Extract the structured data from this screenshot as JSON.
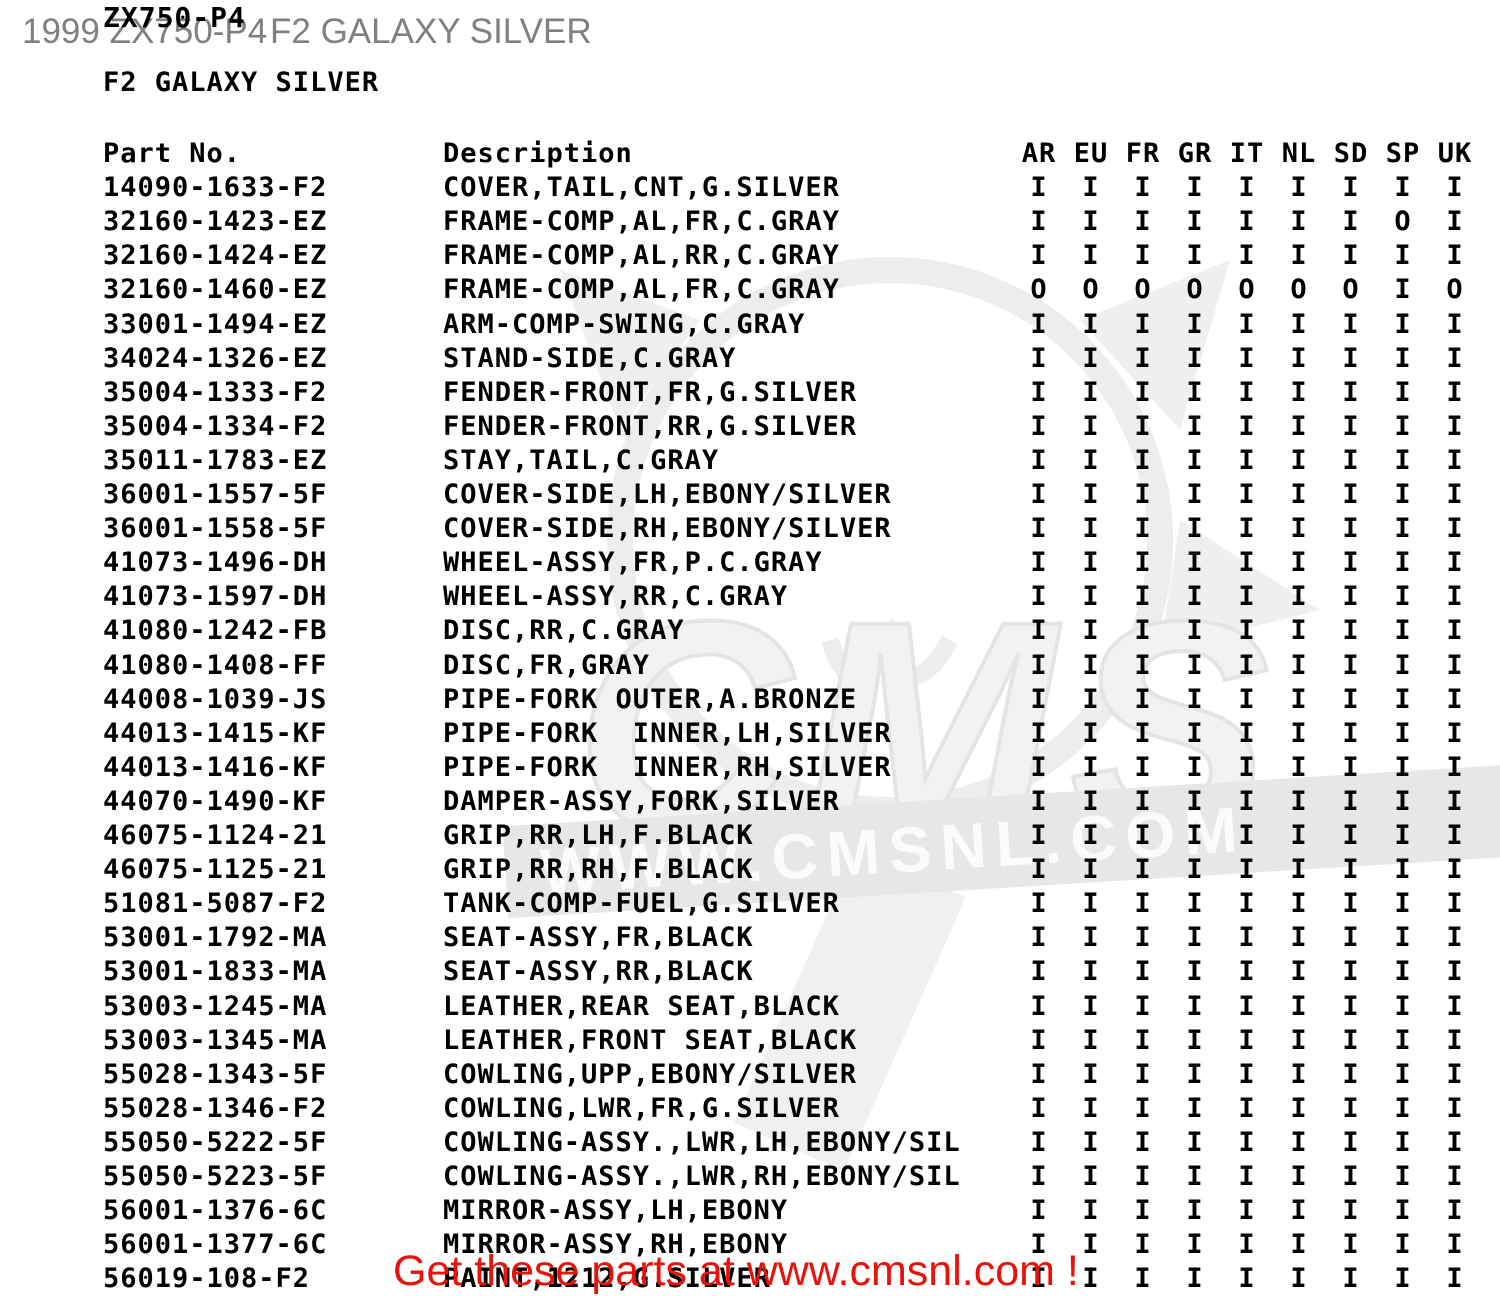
{
  "page_header": {
    "left": "1999 ZX750-P4",
    "right": "F2 GALAXY SILVER"
  },
  "fiche": {
    "model": "ZX750-P4",
    "color_title": "F2 GALAXY SILVER"
  },
  "table": {
    "part_col_header": "Part No.",
    "desc_col_header": "Description",
    "flag_columns": [
      "AR",
      "EU",
      "FR",
      "GR",
      "IT",
      "NL",
      "SD",
      "SP",
      "UK"
    ],
    "rows": [
      {
        "part": "14090-1633-F2",
        "desc": "COVER,TAIL,CNT,G.SILVER",
        "flags": [
          "I",
          "I",
          "I",
          "I",
          "I",
          "I",
          "I",
          "I",
          "I"
        ]
      },
      {
        "part": "32160-1423-EZ",
        "desc": "FRAME-COMP,AL,FR,C.GRAY",
        "flags": [
          "I",
          "I",
          "I",
          "I",
          "I",
          "I",
          "I",
          "O",
          "I"
        ]
      },
      {
        "part": "32160-1424-EZ",
        "desc": "FRAME-COMP,AL,RR,C.GRAY",
        "flags": [
          "I",
          "I",
          "I",
          "I",
          "I",
          "I",
          "I",
          "I",
          "I"
        ]
      },
      {
        "part": "32160-1460-EZ",
        "desc": "FRAME-COMP,AL,FR,C.GRAY",
        "flags": [
          "O",
          "O",
          "O",
          "O",
          "O",
          "O",
          "O",
          "I",
          "O"
        ]
      },
      {
        "part": "33001-1494-EZ",
        "desc": "ARM-COMP-SWING,C.GRAY",
        "flags": [
          "I",
          "I",
          "I",
          "I",
          "I",
          "I",
          "I",
          "I",
          "I"
        ]
      },
      {
        "part": "34024-1326-EZ",
        "desc": "STAND-SIDE,C.GRAY",
        "flags": [
          "I",
          "I",
          "I",
          "I",
          "I",
          "I",
          "I",
          "I",
          "I"
        ]
      },
      {
        "part": "35004-1333-F2",
        "desc": "FENDER-FRONT,FR,G.SILVER",
        "flags": [
          "I",
          "I",
          "I",
          "I",
          "I",
          "I",
          "I",
          "I",
          "I"
        ]
      },
      {
        "part": "35004-1334-F2",
        "desc": "FENDER-FRONT,RR,G.SILVER",
        "flags": [
          "I",
          "I",
          "I",
          "I",
          "I",
          "I",
          "I",
          "I",
          "I"
        ]
      },
      {
        "part": "35011-1783-EZ",
        "desc": "STAY,TAIL,C.GRAY",
        "flags": [
          "I",
          "I",
          "I",
          "I",
          "I",
          "I",
          "I",
          "I",
          "I"
        ]
      },
      {
        "part": "36001-1557-5F",
        "desc": "COVER-SIDE,LH,EBONY/SILVER",
        "flags": [
          "I",
          "I",
          "I",
          "I",
          "I",
          "I",
          "I",
          "I",
          "I"
        ]
      },
      {
        "part": "36001-1558-5F",
        "desc": "COVER-SIDE,RH,EBONY/SILVER",
        "flags": [
          "I",
          "I",
          "I",
          "I",
          "I",
          "I",
          "I",
          "I",
          "I"
        ]
      },
      {
        "part": "41073-1496-DH",
        "desc": "WHEEL-ASSY,FR,P.C.GRAY",
        "flags": [
          "I",
          "I",
          "I",
          "I",
          "I",
          "I",
          "I",
          "I",
          "I"
        ]
      },
      {
        "part": "41073-1597-DH",
        "desc": "WHEEL-ASSY,RR,C.GRAY",
        "flags": [
          "I",
          "I",
          "I",
          "I",
          "I",
          "I",
          "I",
          "I",
          "I"
        ]
      },
      {
        "part": "41080-1242-FB",
        "desc": "DISC,RR,C.GRAY",
        "flags": [
          "I",
          "I",
          "I",
          "I",
          "I",
          "I",
          "I",
          "I",
          "I"
        ]
      },
      {
        "part": "41080-1408-FF",
        "desc": "DISC,FR,GRAY",
        "flags": [
          "I",
          "I",
          "I",
          "I",
          "I",
          "I",
          "I",
          "I",
          "I"
        ]
      },
      {
        "part": "44008-1039-JS",
        "desc": "PIPE-FORK OUTER,A.BRONZE",
        "flags": [
          "I",
          "I",
          "I",
          "I",
          "I",
          "I",
          "I",
          "I",
          "I"
        ]
      },
      {
        "part": "44013-1415-KF",
        "desc": "PIPE-FORK  INNER,LH,SILVER",
        "flags": [
          "I",
          "I",
          "I",
          "I",
          "I",
          "I",
          "I",
          "I",
          "I"
        ]
      },
      {
        "part": "44013-1416-KF",
        "desc": "PIPE-FORK  INNER,RH,SILVER",
        "flags": [
          "I",
          "I",
          "I",
          "I",
          "I",
          "I",
          "I",
          "I",
          "I"
        ]
      },
      {
        "part": "44070-1490-KF",
        "desc": "DAMPER-ASSY,FORK,SILVER",
        "flags": [
          "I",
          "I",
          "I",
          "I",
          "I",
          "I",
          "I",
          "I",
          "I"
        ]
      },
      {
        "part": "46075-1124-21",
        "desc": "GRIP,RR,LH,F.BLACK",
        "flags": [
          "I",
          "I",
          "I",
          "I",
          "I",
          "I",
          "I",
          "I",
          "I"
        ]
      },
      {
        "part": "46075-1125-21",
        "desc": "GRIP,RR,RH,F.BLACK",
        "flags": [
          "I",
          "I",
          "I",
          "I",
          "I",
          "I",
          "I",
          "I",
          "I"
        ]
      },
      {
        "part": "51081-5087-F2",
        "desc": "TANK-COMP-FUEL,G.SILVER",
        "flags": [
          "I",
          "I",
          "I",
          "I",
          "I",
          "I",
          "I",
          "I",
          "I"
        ]
      },
      {
        "part": "53001-1792-MA",
        "desc": "SEAT-ASSY,FR,BLACK",
        "flags": [
          "I",
          "I",
          "I",
          "I",
          "I",
          "I",
          "I",
          "I",
          "I"
        ]
      },
      {
        "part": "53001-1833-MA",
        "desc": "SEAT-ASSY,RR,BLACK",
        "flags": [
          "I",
          "I",
          "I",
          "I",
          "I",
          "I",
          "I",
          "I",
          "I"
        ]
      },
      {
        "part": "53003-1245-MA",
        "desc": "LEATHER,REAR SEAT,BLACK",
        "flags": [
          "I",
          "I",
          "I",
          "I",
          "I",
          "I",
          "I",
          "I",
          "I"
        ]
      },
      {
        "part": "53003-1345-MA",
        "desc": "LEATHER,FRONT SEAT,BLACK",
        "flags": [
          "I",
          "I",
          "I",
          "I",
          "I",
          "I",
          "I",
          "I",
          "I"
        ]
      },
      {
        "part": "55028-1343-5F",
        "desc": "COWLING,UPP,EBONY/SILVER",
        "flags": [
          "I",
          "I",
          "I",
          "I",
          "I",
          "I",
          "I",
          "I",
          "I"
        ]
      },
      {
        "part": "55028-1346-F2",
        "desc": "COWLING,LWR,FR,G.SILVER",
        "flags": [
          "I",
          "I",
          "I",
          "I",
          "I",
          "I",
          "I",
          "I",
          "I"
        ]
      },
      {
        "part": "55050-5222-5F",
        "desc": "COWLING-ASSY.,LWR,LH,EBONY/SIL",
        "flags": [
          "I",
          "I",
          "I",
          "I",
          "I",
          "I",
          "I",
          "I",
          "I"
        ]
      },
      {
        "part": "55050-5223-5F",
        "desc": "COWLING-ASSY.,LWR,RH,EBONY/SIL",
        "flags": [
          "I",
          "I",
          "I",
          "I",
          "I",
          "I",
          "I",
          "I",
          "I"
        ]
      },
      {
        "part": "56001-1376-6C",
        "desc": "MIRROR-ASSY,LH,EBONY",
        "flags": [
          "I",
          "I",
          "I",
          "I",
          "I",
          "I",
          "I",
          "I",
          "I"
        ]
      },
      {
        "part": "56001-1377-6C",
        "desc": "MIRROR-ASSY,RH,EBONY",
        "flags": [
          "I",
          "I",
          "I",
          "I",
          "I",
          "I",
          "I",
          "I",
          "I"
        ]
      },
      {
        "part": "56019-108-F2",
        "desc": "PAINT,1212,G.SILVER",
        "flags": [
          "I",
          "I",
          "I",
          "I",
          "I",
          "I",
          "I",
          "I",
          "I"
        ]
      }
    ]
  },
  "watermark": {
    "text": "WWW.CMSNL.COM"
  },
  "promo": {
    "text": "Get these parts at www.cmsnl.com !"
  },
  "colors": {
    "promo_red": "#e8120b",
    "header_gray": "#808080",
    "text_black": "#000000",
    "watermark_gray": "#e7e7e7"
  }
}
